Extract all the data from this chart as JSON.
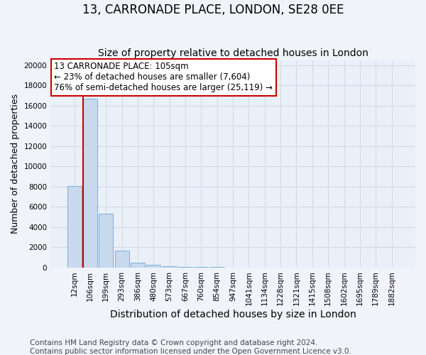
{
  "title": "13, CARRONADE PLACE, LONDON, SE28 0EE",
  "subtitle": "Size of property relative to detached houses in London",
  "xlabel": "Distribution of detached houses by size in London",
  "ylabel": "Number of detached properties",
  "footnote1": "Contains HM Land Registry data © Crown copyright and database right 2024.",
  "footnote2": "Contains public sector information licensed under the Open Government Licence v3.0.",
  "annotation_line1": "13 CARRONADE PLACE: 105sqm",
  "annotation_line2": "← 23% of detached houses are smaller (7,604)",
  "annotation_line3": "76% of semi-detached houses are larger (25,119) →",
  "bar_labels": [
    "12sqm",
    "106sqm",
    "199sqm",
    "293sqm",
    "386sqm",
    "480sqm",
    "573sqm",
    "667sqm",
    "760sqm",
    "854sqm",
    "947sqm",
    "1041sqm",
    "1134sqm",
    "1228sqm",
    "1321sqm",
    "1415sqm",
    "1508sqm",
    "1602sqm",
    "1695sqm",
    "1789sqm",
    "1882sqm"
  ],
  "bar_values": [
    8050,
    16700,
    5300,
    1700,
    480,
    270,
    160,
    80,
    50,
    25,
    15,
    10,
    7,
    5,
    3,
    2,
    2,
    1,
    1,
    1,
    1
  ],
  "bar_color": "#c8d9ee",
  "bar_edgecolor": "#7bafd4",
  "red_line_index": 1,
  "red_line_color": "#cc0000",
  "ylim": [
    0,
    20500
  ],
  "yticks": [
    0,
    2000,
    4000,
    6000,
    8000,
    10000,
    12000,
    14000,
    16000,
    18000,
    20000
  ],
  "background_color": "#f0f4fa",
  "plot_bg_color": "#eaf0f8",
  "annotation_box_color": "#ffffff",
  "annotation_box_edgecolor": "#cc0000",
  "grid_color": "#d0dcea",
  "title_fontsize": 12,
  "subtitle_fontsize": 10,
  "ylabel_fontsize": 9,
  "xlabel_fontsize": 10,
  "annotation_fontsize": 8.5,
  "tick_fontsize": 7.5,
  "footnote_fontsize": 7.5
}
